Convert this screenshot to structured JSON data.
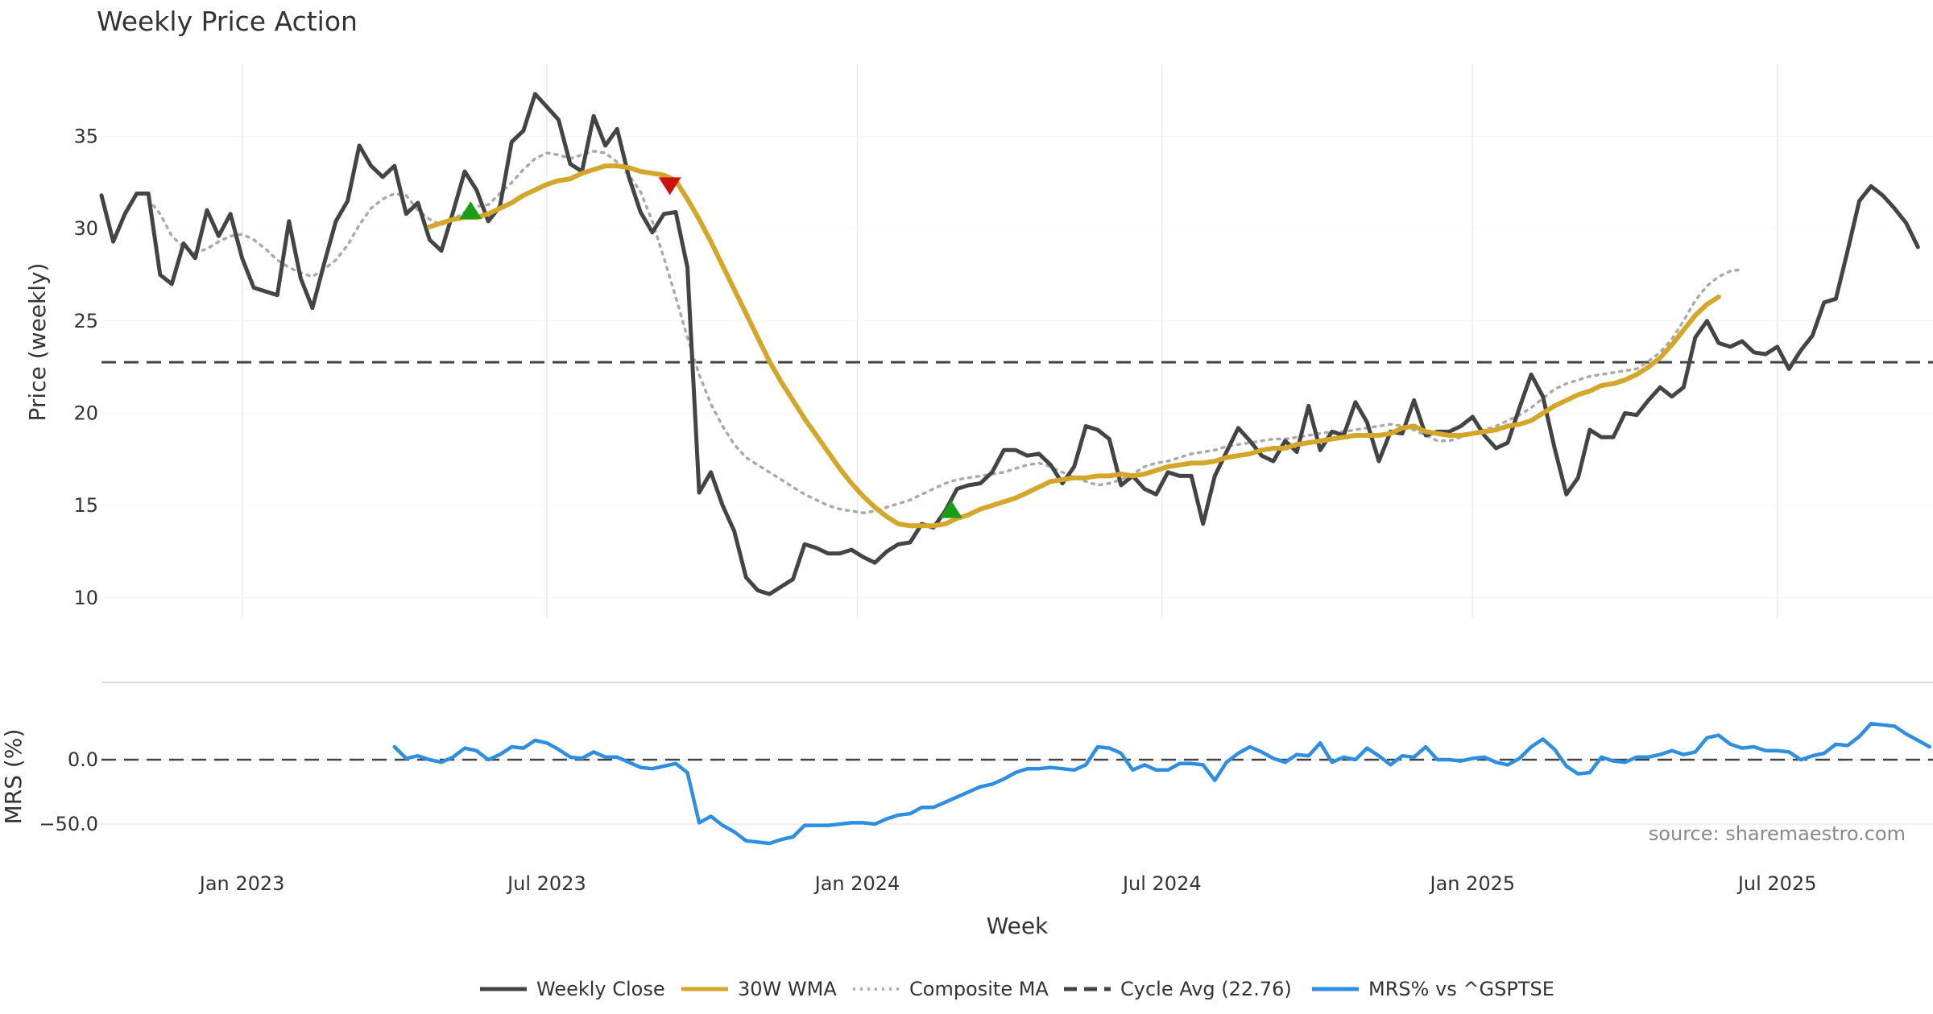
{
  "chart_data": {
    "type": "line",
    "title": "Weekly Price Action",
    "xlabel": "Week",
    "source": "source: sharemaestro.com",
    "x_ticks": [
      "Jan 2023",
      "Jul 2023",
      "Jan 2024",
      "Jul 2024",
      "Jan 2025",
      "Jul 2025"
    ],
    "x_tick_weeks": [
      12,
      38,
      64.5,
      90.5,
      117,
      143
    ],
    "price_panel": {
      "ylabel": "Price (weekly)",
      "ylim": [
        8.9,
        38.9
      ],
      "y_ticks": [
        10,
        15,
        20,
        25,
        30,
        35
      ],
      "cycle_avg": 22.76,
      "weekly_close": [
        31.8,
        29.3,
        30.8,
        31.9,
        31.9,
        27.5,
        27.0,
        29.2,
        28.4,
        31.0,
        29.6,
        30.8,
        28.4,
        26.8,
        26.6,
        26.4,
        30.4,
        27.3,
        25.7,
        28.1,
        30.4,
        31.5,
        34.5,
        33.4,
        32.8,
        33.4,
        30.8,
        31.4,
        29.4,
        28.8,
        30.9,
        33.1,
        32.1,
        30.4,
        31.2,
        34.7,
        35.3,
        37.3,
        36.6,
        35.9,
        33.5,
        33.1,
        36.1,
        34.5,
        35.4,
        32.8,
        30.9,
        29.8,
        30.8,
        30.9,
        27.9,
        15.7,
        16.8,
        15.0,
        13.6,
        11.1,
        10.4,
        10.2,
        10.6,
        11.0,
        12.9,
        12.7,
        12.4,
        12.4,
        12.6,
        12.2,
        11.9,
        12.5,
        12.9,
        13.0,
        14.0,
        13.8,
        14.7,
        15.9,
        16.1,
        16.2,
        16.8,
        18.0,
        18.0,
        17.7,
        17.8,
        17.2,
        16.2,
        17.1,
        19.3,
        19.1,
        18.6,
        16.1,
        16.6,
        15.9,
        15.6,
        16.8,
        16.6,
        16.6,
        14.0,
        16.6,
        17.9,
        19.2,
        18.5,
        17.7,
        17.4,
        18.5,
        17.9,
        20.4,
        18.0,
        19.0,
        18.8,
        20.6,
        19.5,
        17.4,
        19.0,
        18.9,
        20.7,
        18.8,
        19.0,
        19.0,
        19.3,
        19.8,
        18.8,
        18.1,
        18.4,
        20.3,
        22.1,
        20.9,
        18.1,
        15.6,
        16.5,
        19.1,
        18.7,
        18.7,
        20.0,
        19.9,
        20.7,
        21.4,
        20.9,
        21.4,
        24.1,
        25.0,
        23.8,
        23.6,
        23.9,
        23.3,
        23.2,
        23.6,
        22.4,
        23.4,
        24.2,
        26.0,
        26.2,
        28.8,
        31.5,
        32.3,
        31.8,
        31.1,
        30.3,
        29.0
      ],
      "wma_30w_start_week": 28,
      "wma_30w": [
        30.1,
        30.3,
        30.5,
        30.6,
        30.6,
        30.8,
        31.1,
        31.4,
        31.8,
        32.1,
        32.4,
        32.6,
        32.7,
        33.0,
        33.2,
        33.4,
        33.4,
        33.3,
        33.1,
        33.0,
        32.9,
        32.6,
        31.6,
        30.5,
        29.3,
        28.0,
        26.7,
        25.4,
        24.1,
        22.8,
        21.7,
        20.7,
        19.7,
        18.8,
        17.9,
        17.0,
        16.2,
        15.5,
        14.9,
        14.4,
        14.0,
        13.9,
        13.9,
        13.9,
        14.0,
        14.3,
        14.5,
        14.8,
        15.0,
        15.2,
        15.4,
        15.7,
        16.0,
        16.3,
        16.4,
        16.5,
        16.5,
        16.6,
        16.6,
        16.7,
        16.6,
        16.7,
        16.9,
        17.1,
        17.2,
        17.3,
        17.3,
        17.4,
        17.6,
        17.7,
        17.8,
        18.0,
        18.1,
        18.1,
        18.3,
        18.4,
        18.5,
        18.6,
        18.7,
        18.8,
        18.8,
        18.8,
        18.9,
        19.2,
        19.3,
        19.0,
        18.9,
        18.8,
        18.8,
        18.9,
        19.0,
        19.1,
        19.3,
        19.4,
        19.6,
        20.0,
        20.4,
        20.7,
        21.0,
        21.2,
        21.5,
        21.6,
        21.8,
        22.1,
        22.5,
        23.0,
        23.7,
        24.5,
        25.3,
        25.9,
        26.3
      ],
      "composite_ma_start_week": 4,
      "composite_ma": [
        31.6,
        30.8,
        29.6,
        29.0,
        28.7,
        28.9,
        29.3,
        29.6,
        29.7,
        29.4,
        28.9,
        28.3,
        27.9,
        27.6,
        27.4,
        27.8,
        28.3,
        29.1,
        30.2,
        31.1,
        31.6,
        31.9,
        31.8,
        31.0,
        30.5,
        30.2,
        30.5,
        30.9,
        31.2,
        31.3,
        31.9,
        32.5,
        33.2,
        33.8,
        34.1,
        34.0,
        33.8,
        34.0,
        34.2,
        34.1,
        33.6,
        32.9,
        32.0,
        30.4,
        28.4,
        26.3,
        24.1,
        22.1,
        20.5,
        19.3,
        18.3,
        17.6,
        17.2,
        16.8,
        16.4,
        16.0,
        15.6,
        15.3,
        15.0,
        14.8,
        14.7,
        14.6,
        14.7,
        14.9,
        15.1,
        15.3,
        15.6,
        15.9,
        16.2,
        16.4,
        16.5,
        16.6,
        16.7,
        16.8,
        17.0,
        17.2,
        17.3,
        17.1,
        16.8,
        16.5,
        16.3,
        16.1,
        16.2,
        16.4,
        16.7,
        17.1,
        17.3,
        17.4,
        17.6,
        17.8,
        17.9,
        18.0,
        18.2,
        18.3,
        18.4,
        18.5,
        18.6,
        18.6,
        18.7,
        18.8,
        18.9,
        19.0,
        19.0,
        19.1,
        19.2,
        19.3,
        19.4,
        19.3,
        19.1,
        18.8,
        18.5,
        18.5,
        18.7,
        18.9,
        19.1,
        19.3,
        19.6,
        19.9,
        20.3,
        20.8,
        21.3,
        21.6,
        21.8,
        22.0,
        22.1,
        22.2,
        22.3,
        22.4,
        22.8,
        23.3,
        24.0,
        25.0,
        26.1,
        26.9,
        27.4,
        27.7,
        27.8
      ],
      "signals": [
        {
          "type": "buy",
          "week": 31.5,
          "price": 31.0
        },
        {
          "type": "sell",
          "week": 48.5,
          "price": 32.3
        },
        {
          "type": "buy",
          "week": 72.5,
          "price": 14.8
        }
      ]
    },
    "mrs_panel": {
      "ylabel": "MRS (%)",
      "ylim": [
        -75,
        60
      ],
      "y_ticks": [
        0.0,
        -50.0
      ],
      "y_tick_labels": [
        "0.0",
        "−50.0"
      ],
      "start_week": 25,
      "mrs_values": [
        10,
        1,
        3,
        0,
        -2,
        2,
        9,
        7,
        0,
        4,
        10,
        9,
        15,
        13,
        8,
        2,
        1,
        6,
        2,
        2,
        -2,
        -6,
        -7,
        -5,
        -3,
        -10,
        -49,
        -44,
        -51,
        -56,
        -63,
        -64,
        -65,
        -62,
        -60,
        -51,
        -51,
        -51,
        -50,
        -49,
        -49,
        -50,
        -46,
        -43,
        -42,
        -37,
        -37,
        -33,
        -29,
        -25,
        -21,
        -19,
        -15,
        -10,
        -7,
        -7,
        -6,
        -7,
        -8,
        -4,
        10,
        9,
        5,
        -8,
        -4,
        -8,
        -8,
        -3,
        -3,
        -4,
        -16,
        -2,
        5,
        10,
        6,
        1,
        -2,
        4,
        3,
        13,
        -2,
        2,
        0,
        9,
        3,
        -4,
        3,
        2,
        10,
        0,
        0,
        -1,
        1,
        2,
        -2,
        -4,
        1,
        10,
        16,
        8,
        -5,
        -11,
        -10,
        2,
        -1,
        -2,
        2,
        2,
        4,
        7,
        4,
        6,
        17,
        19,
        12,
        9,
        10,
        7,
        7,
        6,
        0,
        3,
        5,
        12,
        11,
        18,
        28,
        27,
        26,
        20,
        15,
        10
      ]
    },
    "legend": [
      {
        "label": "Weekly Close",
        "color": "#444444",
        "style": "solid"
      },
      {
        "label": "30W WMA",
        "color": "#D4A62A",
        "style": "solid"
      },
      {
        "label": "Composite MA",
        "color": "#AAAAAA",
        "style": "dotted"
      },
      {
        "label": "Cycle Avg (22.76)",
        "color": "#444444",
        "style": "dashed"
      },
      {
        "label": "MRS% vs ^GSPTSE",
        "color": "#2E8FE0",
        "style": "solid"
      }
    ],
    "colors": {
      "close": "#444444",
      "wma": "#D4A62A",
      "composite": "#AAAAAA",
      "cycle": "#444444",
      "mrs": "#2E8FE0",
      "buy": "#1A9E1A",
      "sell": "#CC1111",
      "grid": "#EBEBEB"
    }
  }
}
